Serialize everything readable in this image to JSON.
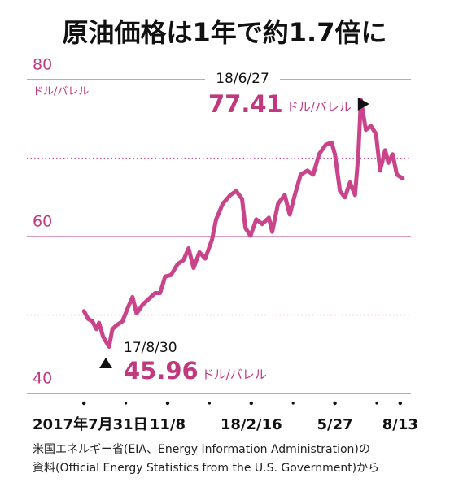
{
  "chart_data": {
    "type": "line",
    "title": "原油価格は1年で約1.7倍に",
    "y_unit": "ドル/バレル",
    "color": "#c9448a",
    "x": [
      "2017-07-31",
      "2017-08-05",
      "2017-08-10",
      "2017-08-15",
      "2017-08-18",
      "2017-08-23",
      "2017-08-30",
      "2017-09-03",
      "2017-09-08",
      "2017-09-15",
      "2017-09-21",
      "2017-09-27",
      "2017-10-02",
      "2017-10-09",
      "2017-10-16",
      "2017-10-24",
      "2017-10-30",
      "2017-11-05",
      "2017-11-12",
      "2017-11-20",
      "2017-11-27",
      "2017-12-03",
      "2017-12-09",
      "2017-12-16",
      "2017-12-23",
      "2017-12-31",
      "2018-01-05",
      "2018-01-13",
      "2018-01-22",
      "2018-01-29",
      "2018-02-05",
      "2018-02-09",
      "2018-02-15",
      "2018-02-22",
      "2018-03-01",
      "2018-03-09",
      "2018-03-13",
      "2018-03-20",
      "2018-03-28",
      "2018-04-03",
      "2018-04-09",
      "2018-04-16",
      "2018-04-24",
      "2018-05-01",
      "2018-05-08",
      "2018-05-16",
      "2018-05-23",
      "2018-05-27",
      "2018-06-02",
      "2018-06-08",
      "2018-06-14",
      "2018-06-20",
      "2018-06-24",
      "2018-06-27",
      "2018-07-03",
      "2018-07-09",
      "2018-07-15",
      "2018-07-20",
      "2018-07-26",
      "2018-07-30",
      "2018-08-04",
      "2018-08-09",
      "2018-08-16"
    ],
    "values": [
      50.5,
      49.5,
      49.2,
      48.2,
      49.0,
      47.2,
      45.96,
      48.2,
      48.7,
      49.2,
      50.8,
      52.3,
      50.2,
      51.3,
      52.0,
      52.8,
      52.8,
      54.9,
      55.1,
      56.5,
      57.0,
      58.5,
      56.0,
      58.0,
      57.2,
      59.6,
      62.2,
      64.2,
      65.3,
      65.8,
      64.8,
      61.1,
      60.1,
      62.2,
      61.6,
      62.4,
      60.6,
      64.2,
      65.3,
      62.8,
      65.3,
      67.9,
      68.4,
      67.9,
      70.5,
      71.7,
      72.0,
      70.5,
      65.8,
      65.0,
      66.9,
      65.3,
      70.5,
      77.41,
      73.6,
      74.1,
      73.1,
      68.4,
      71.0,
      69.4,
      70.5,
      67.9,
      67.4
    ],
    "xlim": [
      "2017-07-25",
      "2018-08-20"
    ],
    "xticks": [
      {
        "value": "2017-07-31",
        "label": "2017年7月31日"
      },
      {
        "value": "2017-11-08",
        "label": "11/8"
      },
      {
        "value": "2018-02-16",
        "label": "18/2/16"
      },
      {
        "value": "2018-05-27",
        "label": "5/27"
      },
      {
        "value": "2018-08-13",
        "label": "8/13"
      }
    ],
    "xminorticks": [
      "2017-09-19",
      "2017-12-28",
      "2018-04-07",
      "2018-07-16"
    ],
    "ylim": [
      40,
      80
    ],
    "yticks": [
      40,
      60,
      80
    ],
    "yminorticks": [
      50,
      70
    ],
    "annotations": [
      {
        "label": "18/6/27",
        "value": 77.41,
        "unit": "ドル/バレル"
      },
      {
        "label": "17/8/30",
        "value": 45.96,
        "unit": "ドル/バレル"
      }
    ],
    "source": [
      "米国エネルギー省(EIA、Energy Information Administration)の",
      "資料(Official Energy Statistics from the U.S. Government)から"
    ]
  }
}
